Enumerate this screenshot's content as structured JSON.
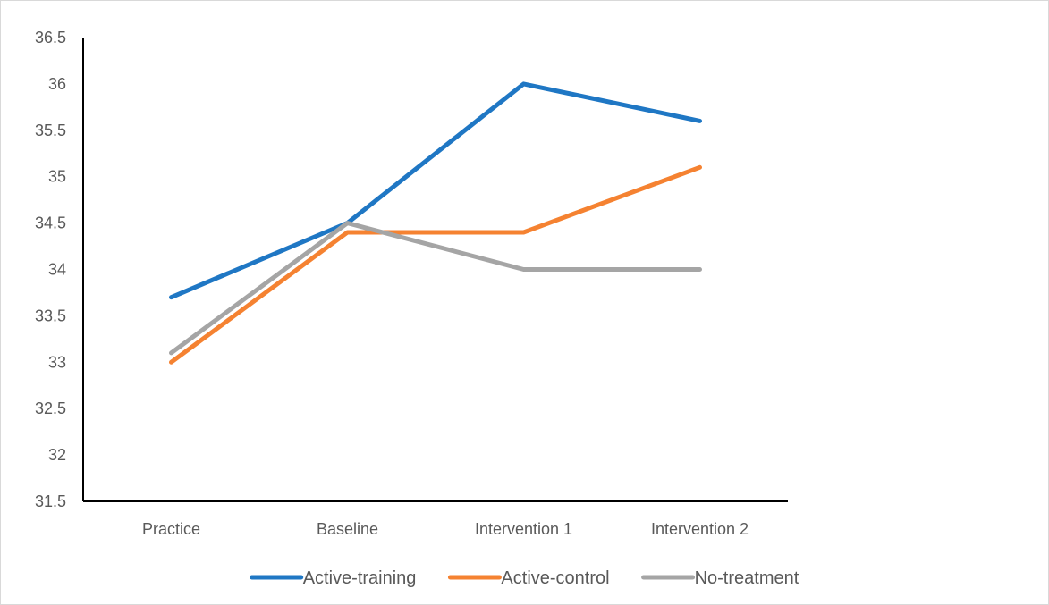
{
  "chart_data": {
    "type": "line",
    "title": "",
    "xlabel": "",
    "ylabel": "",
    "categories": [
      "Practice",
      "Baseline",
      "Intervention 1",
      "Intervention 2"
    ],
    "ylim": [
      31.5,
      36.5
    ],
    "ytick_step": 0.5,
    "y_tick_labels": [
      "31.5",
      "32",
      "32.5",
      "33",
      "33.5",
      "34",
      "34.5",
      "35",
      "35.5",
      "36",
      "36.5"
    ],
    "grid": false,
    "legend_position": "bottom",
    "series": [
      {
        "name": "Active-training",
        "color": "#1f77c4",
        "values": [
          33.7,
          34.5,
          36.0,
          35.6
        ]
      },
      {
        "name": "Active-control",
        "color": "#f58231",
        "values": [
          33.0,
          34.4,
          34.4,
          35.1
        ]
      },
      {
        "name": "No-treatment",
        "color": "#a5a5a5",
        "values": [
          33.1,
          34.5,
          34.0,
          34.0
        ]
      }
    ]
  }
}
